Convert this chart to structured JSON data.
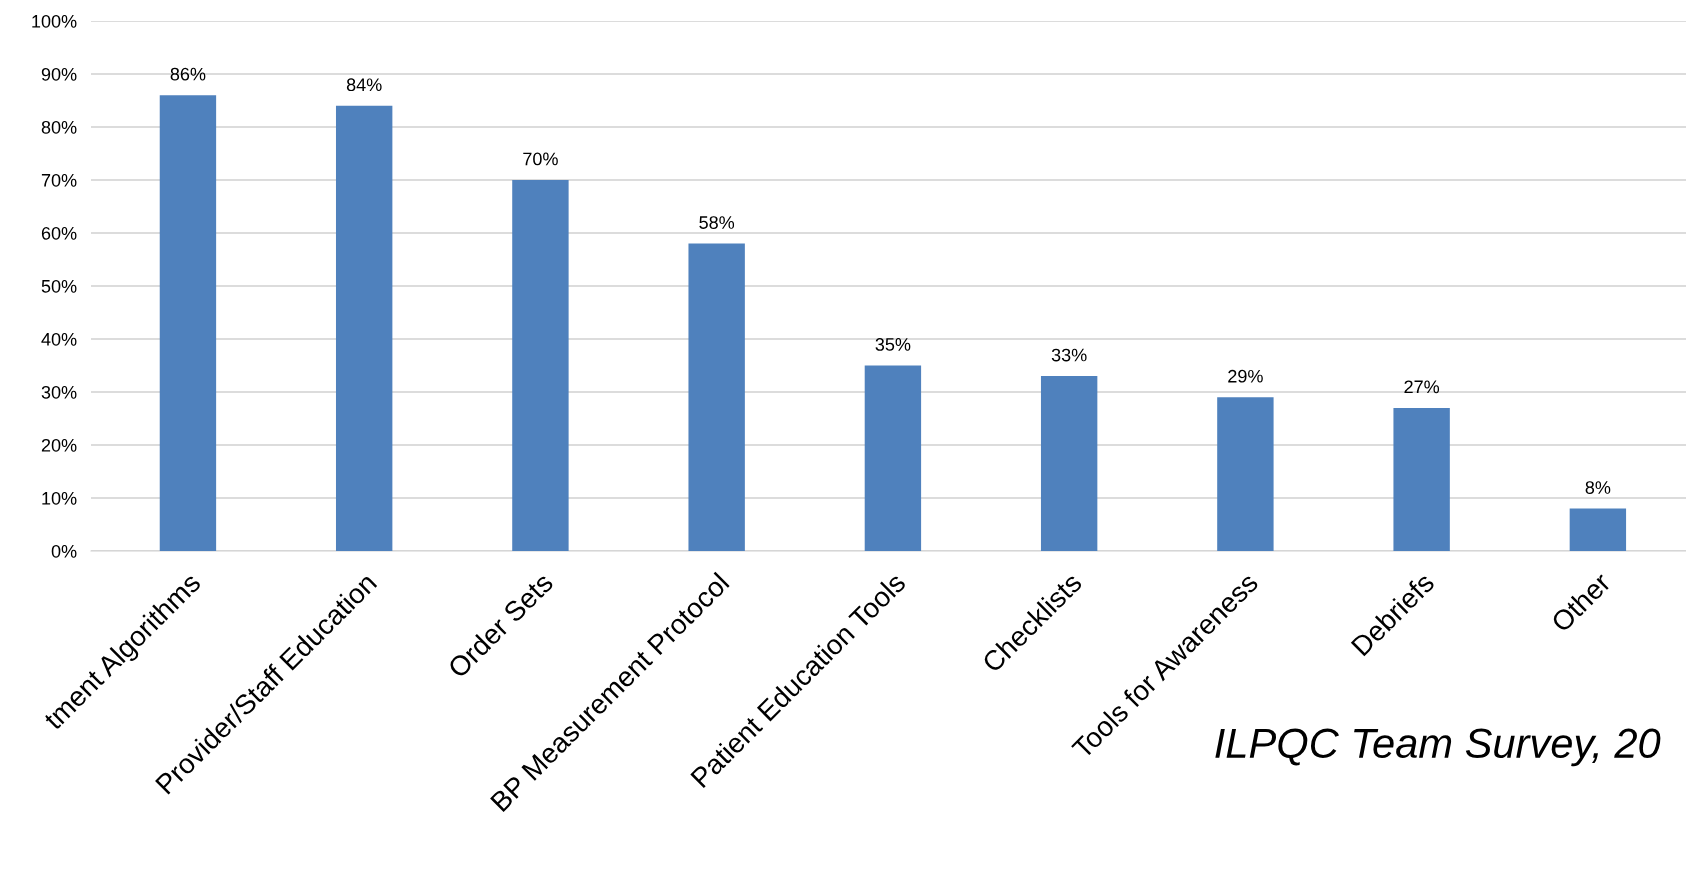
{
  "chart_data": {
    "type": "bar",
    "categories": [
      "tment Algorithms",
      "Provider/Staff Education",
      "Order Sets",
      "BP Measurement Protocol",
      "Patient Education Tools",
      "Checklists",
      "Tools for Awareness",
      "Debriefs",
      "Other"
    ],
    "values": [
      86,
      84,
      70,
      58,
      35,
      33,
      29,
      27,
      8
    ],
    "value_labels": [
      "86%",
      "84%",
      "70%",
      "58%",
      "35%",
      "33%",
      "29%",
      "27%",
      "8%"
    ],
    "color": "#4f81bd",
    "ylim": [
      0,
      100
    ],
    "yticks": [
      {
        "value": 0,
        "label": "0%"
      },
      {
        "value": 10,
        "label": "10%"
      },
      {
        "value": 20,
        "label": "20%"
      },
      {
        "value": 30,
        "label": "30%"
      },
      {
        "value": 40,
        "label": "40%"
      },
      {
        "value": 50,
        "label": "50%"
      },
      {
        "value": 60,
        "label": "60%"
      },
      {
        "value": 70,
        "label": "70%"
      },
      {
        "value": 80,
        "label": "80%"
      },
      {
        "value": 90,
        "label": "90%"
      },
      {
        "value": 100,
        "label": "100%"
      }
    ],
    "grid": "y",
    "annotations": [
      "ILPQC Team Survey, 20"
    ]
  }
}
